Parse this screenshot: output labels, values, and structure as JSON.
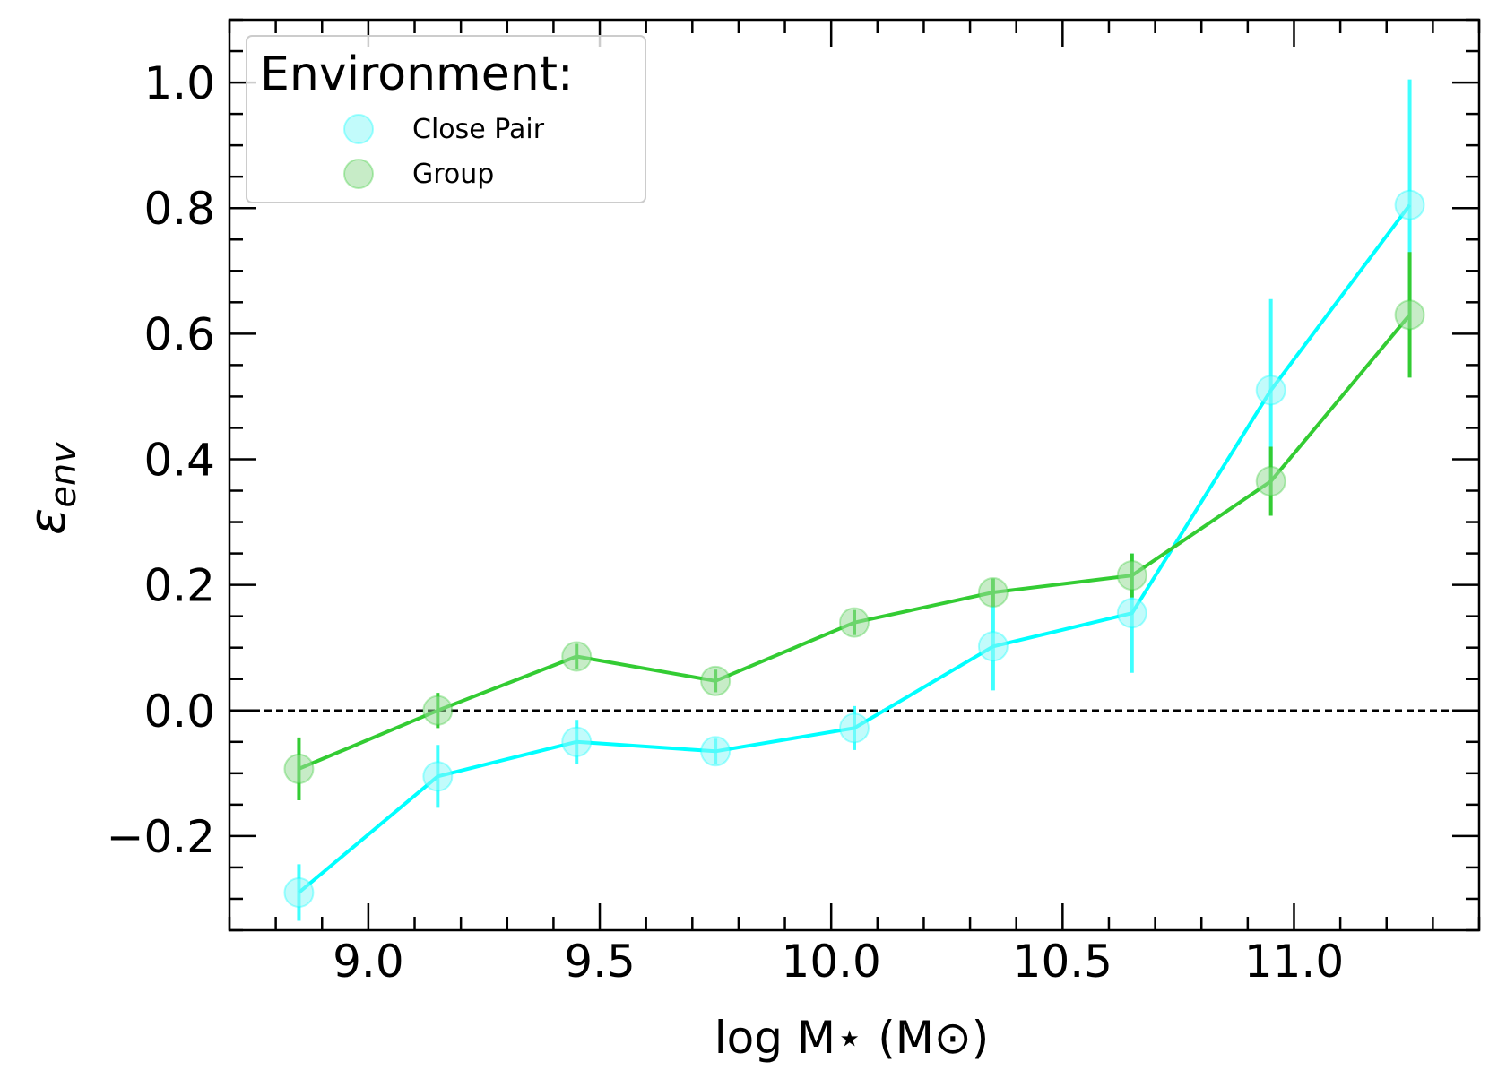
{
  "chart_data": {
    "type": "line",
    "title": "",
    "xlabel": "log M⋆ (M⊙)",
    "ylabel_symbol": "ε",
    "ylabel_subscript": "env",
    "xlim": [
      8.7,
      11.4
    ],
    "ylim": [
      -0.35,
      1.1
    ],
    "xticks": [
      9.0,
      9.5,
      10.0,
      10.5,
      11.0
    ],
    "xtick_labels": [
      "9.0",
      "9.5",
      "10.0",
      "10.5",
      "11.0"
    ],
    "yticks": [
      -0.2,
      0.0,
      0.2,
      0.4,
      0.6,
      0.8,
      1.0
    ],
    "ytick_labels": [
      "−0.2",
      "0.0",
      "0.2",
      "0.4",
      "0.6",
      "0.8",
      "1.0"
    ],
    "reference_line_y": 0.0,
    "legend": {
      "title": "Environment:",
      "position": "top-left"
    },
    "series": [
      {
        "name": "Close Pair",
        "line_color": "#00ffff",
        "marker_color": "#8ff7f7",
        "x": [
          8.85,
          9.15,
          9.45,
          9.75,
          10.05,
          10.35,
          10.65,
          10.95,
          11.25
        ],
        "y": [
          -0.29,
          -0.105,
          -0.05,
          -0.065,
          -0.028,
          0.102,
          0.155,
          0.51,
          0.805
        ],
        "err": [
          0.045,
          0.05,
          0.035,
          0.02,
          0.035,
          0.07,
          0.095,
          0.145,
          0.2
        ]
      },
      {
        "name": "Group",
        "line_color": "#33cc33",
        "marker_color": "#99dd99",
        "x": [
          8.85,
          9.15,
          9.45,
          9.75,
          10.05,
          10.35,
          10.65,
          10.95,
          11.25
        ],
        "y": [
          -0.093,
          0.0,
          0.086,
          0.047,
          0.14,
          0.188,
          0.215,
          0.365,
          0.63
        ],
        "err": [
          0.05,
          0.028,
          0.02,
          0.018,
          0.02,
          0.022,
          0.035,
          0.055,
          0.1
        ]
      }
    ]
  }
}
